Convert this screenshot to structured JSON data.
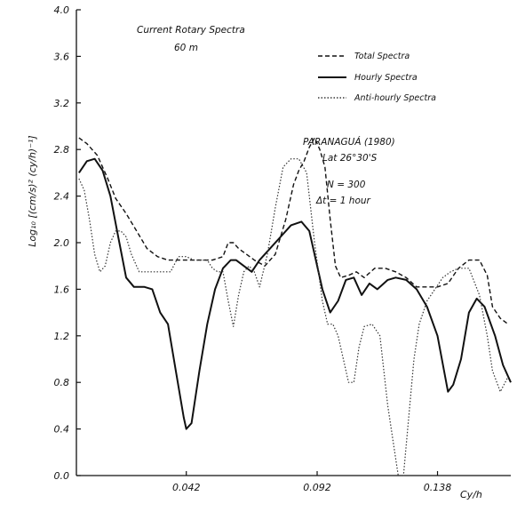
{
  "chart_data": {
    "type": "line",
    "title": "Current Rotary Spectra",
    "depth_label": "60 m",
    "station": "PARANAGUÁ (1980)",
    "latitude": "Lat 26°30'S",
    "n_label": "N = 300",
    "dt_label": "Δt = 1 hour",
    "ylabel": "Log₁₀ [(cm/s)² (cy/h)⁻¹]",
    "xlabel": "Cy/h",
    "ylim": [
      0.0,
      4.0
    ],
    "xlim": [
      0.0,
      0.166
    ],
    "yticks": [
      "0.0",
      "0.4",
      "0.8",
      "1.2",
      "1.6",
      "2.0",
      "2.4",
      "2.8",
      "3.2",
      "3.6",
      "4.0"
    ],
    "xticks": [
      {
        "value": 0.042,
        "label": "0.042"
      },
      {
        "value": 0.092,
        "label": "0.092"
      },
      {
        "value": 0.138,
        "label": "0.138"
      }
    ],
    "legend_position": "top-right",
    "series": [
      {
        "name": "Total Spectra",
        "style": "dashed",
        "x": [
          0.001,
          0.004,
          0.008,
          0.012,
          0.015,
          0.019,
          0.023,
          0.027,
          0.031,
          0.035,
          0.039,
          0.043,
          0.047,
          0.052,
          0.056,
          0.058,
          0.06,
          0.062,
          0.065,
          0.068,
          0.072,
          0.076,
          0.08,
          0.083,
          0.085,
          0.087,
          0.089,
          0.091,
          0.093,
          0.095,
          0.097,
          0.099,
          0.101,
          0.104,
          0.107,
          0.11,
          0.114,
          0.118,
          0.122,
          0.126,
          0.13,
          0.134,
          0.138,
          0.142,
          0.146,
          0.15,
          0.154,
          0.157,
          0.159,
          0.162,
          0.165
        ],
        "y": [
          2.9,
          2.85,
          2.75,
          2.55,
          2.38,
          2.25,
          2.1,
          1.95,
          1.88,
          1.85,
          1.85,
          1.85,
          1.85,
          1.85,
          1.88,
          2.0,
          2.0,
          1.95,
          1.9,
          1.85,
          1.8,
          1.9,
          2.2,
          2.5,
          2.62,
          2.7,
          2.82,
          2.9,
          2.8,
          2.65,
          2.2,
          1.8,
          1.7,
          1.72,
          1.75,
          1.7,
          1.78,
          1.78,
          1.75,
          1.7,
          1.62,
          1.62,
          1.62,
          1.65,
          1.78,
          1.85,
          1.85,
          1.72,
          1.45,
          1.35,
          1.3
        ]
      },
      {
        "name": "Hourly Spectra",
        "style": "solid",
        "x": [
          0.001,
          0.004,
          0.007,
          0.01,
          0.013,
          0.016,
          0.019,
          0.022,
          0.026,
          0.029,
          0.032,
          0.035,
          0.038,
          0.041,
          0.042,
          0.044,
          0.047,
          0.05,
          0.053,
          0.056,
          0.059,
          0.061,
          0.064,
          0.067,
          0.07,
          0.074,
          0.078,
          0.082,
          0.086,
          0.089,
          0.091,
          0.094,
          0.097,
          0.1,
          0.103,
          0.106,
          0.109,
          0.112,
          0.115,
          0.119,
          0.122,
          0.126,
          0.13,
          0.134,
          0.138,
          0.142,
          0.144,
          0.147,
          0.15,
          0.153,
          0.156,
          0.16,
          0.163,
          0.166
        ],
        "y": [
          2.6,
          2.7,
          2.72,
          2.62,
          2.4,
          2.05,
          1.7,
          1.62,
          1.62,
          1.6,
          1.4,
          1.3,
          0.9,
          0.5,
          0.4,
          0.45,
          0.9,
          1.3,
          1.6,
          1.78,
          1.85,
          1.85,
          1.8,
          1.75,
          1.85,
          1.95,
          2.05,
          2.15,
          2.18,
          2.1,
          1.9,
          1.6,
          1.4,
          1.5,
          1.68,
          1.7,
          1.55,
          1.65,
          1.6,
          1.68,
          1.7,
          1.68,
          1.6,
          1.45,
          1.2,
          0.72,
          0.78,
          1.0,
          1.4,
          1.52,
          1.45,
          1.2,
          0.95,
          0.8
        ]
      },
      {
        "name": "Anti-hourly Spectra",
        "style": "dotted",
        "x": [
          0.001,
          0.003,
          0.005,
          0.007,
          0.009,
          0.011,
          0.013,
          0.015,
          0.017,
          0.019,
          0.021,
          0.024,
          0.027,
          0.03,
          0.033,
          0.036,
          0.039,
          0.042,
          0.045,
          0.048,
          0.05,
          0.052,
          0.054,
          0.056,
          0.058,
          0.06,
          0.062,
          0.064,
          0.066,
          0.068,
          0.07,
          0.073,
          0.076,
          0.079,
          0.082,
          0.085,
          0.088,
          0.091,
          0.094,
          0.096,
          0.098,
          0.1,
          0.102,
          0.104,
          0.106,
          0.108,
          0.11,
          0.113,
          0.116,
          0.119,
          0.121,
          0.123,
          0.125,
          0.127,
          0.129,
          0.131,
          0.134,
          0.137,
          0.14,
          0.143,
          0.146,
          0.15,
          0.154,
          0.157,
          0.159,
          0.162,
          0.165
        ],
        "y": [
          2.55,
          2.45,
          2.2,
          1.9,
          1.75,
          1.8,
          2.0,
          2.1,
          2.1,
          2.05,
          1.9,
          1.75,
          1.75,
          1.75,
          1.75,
          1.75,
          1.88,
          1.88,
          1.85,
          1.85,
          1.85,
          1.78,
          1.75,
          1.75,
          1.5,
          1.28,
          1.55,
          1.75,
          1.8,
          1.75,
          1.62,
          1.9,
          2.3,
          2.65,
          2.72,
          2.72,
          2.6,
          2.0,
          1.5,
          1.3,
          1.3,
          1.2,
          1.0,
          0.8,
          0.8,
          1.1,
          1.28,
          1.3,
          1.2,
          0.6,
          0.3,
          0.0,
          0.0,
          0.5,
          1.0,
          1.3,
          1.5,
          1.6,
          1.7,
          1.75,
          1.78,
          1.78,
          1.55,
          1.2,
          0.9,
          0.72,
          0.85
        ]
      }
    ]
  }
}
